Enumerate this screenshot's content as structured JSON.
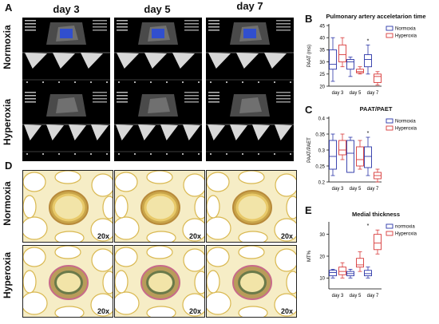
{
  "panels": {
    "A": "A",
    "B": "B",
    "C": "C",
    "D": "D",
    "E": "E"
  },
  "columns": [
    "day 3",
    "day 5",
    "day 7"
  ],
  "rows": [
    "Normoxia",
    "Hyperoxia"
  ],
  "magnification": "20x",
  "legend": {
    "normoxia": "Normoxia",
    "hyperoxia": "Hyperoxia",
    "normoxia_lower": "normoxia"
  },
  "colors": {
    "normoxia": "#2b35a8",
    "hyperoxia": "#d83a3a"
  },
  "chart_data": [
    {
      "type": "box",
      "panel": "B",
      "title": "Pulmonary artery acceletarion time",
      "ylabel": "PAAT (ms)",
      "categories": [
        "day 3",
        "day 5",
        "day 7"
      ],
      "yticks": [
        20,
        25,
        30,
        35,
        40,
        45
      ],
      "ylim": [
        20,
        45
      ],
      "legend_labels": [
        "Normoxia",
        "Hyperoxia"
      ],
      "significance": [
        {
          "category": "day 7",
          "mark": "*"
        }
      ],
      "series": [
        {
          "name": "Normoxia",
          "boxes": [
            {
              "min": 22,
              "q1": 27,
              "median": 29,
              "q3": 35,
              "max": 40
            },
            {
              "min": 24,
              "q1": 27,
              "median": 30,
              "q3": 31,
              "max": 32
            },
            {
              "min": 25,
              "q1": 28,
              "median": 31,
              "q3": 33,
              "max": 37
            }
          ]
        },
        {
          "name": "Hyperoxia",
          "boxes": [
            {
              "min": 28,
              "q1": 30,
              "median": 33,
              "q3": 37,
              "max": 40
            },
            {
              "min": 25,
              "q1": 25.5,
              "median": 26,
              "q3": 27,
              "max": 28
            },
            {
              "min": 20.5,
              "q1": 21.5,
              "median": 24,
              "q3": 25,
              "max": 26
            }
          ]
        }
      ]
    },
    {
      "type": "box",
      "panel": "C",
      "title": "PAAT/PAET",
      "ylabel": "PAAT/PAET",
      "categories": [
        "day 3",
        "day 5",
        "day 7"
      ],
      "yticks": [
        0.2,
        0.25,
        0.3,
        0.35,
        0.4
      ],
      "ylim": [
        0.2,
        0.4
      ],
      "legend_labels": [
        "Normoxia",
        "Hyperoxia"
      ],
      "significance": [
        {
          "category": "day 7",
          "mark": "*"
        }
      ],
      "series": [
        {
          "name": "Normoxia",
          "boxes": [
            {
              "min": 0.22,
              "q1": 0.24,
              "median": 0.28,
              "q3": 0.33,
              "max": 0.35
            },
            {
              "min": 0.23,
              "q1": 0.23,
              "median": 0.29,
              "q3": 0.33,
              "max": 0.34
            },
            {
              "min": 0.22,
              "q1": 0.245,
              "median": 0.28,
              "q3": 0.31,
              "max": 0.34
            }
          ]
        },
        {
          "name": "Hyperoxia",
          "boxes": [
            {
              "min": 0.27,
              "q1": 0.285,
              "median": 0.3,
              "q3": 0.33,
              "max": 0.35
            },
            {
              "min": 0.24,
              "q1": 0.25,
              "median": 0.27,
              "q3": 0.31,
              "max": 0.33
            },
            {
              "min": 0.2,
              "q1": 0.21,
              "median": 0.22,
              "q3": 0.23,
              "max": 0.24
            }
          ]
        }
      ]
    },
    {
      "type": "box",
      "panel": "E",
      "title": "Medial thickness",
      "ylabel": "MT%",
      "categories": [
        "day 3",
        "day 5",
        "day 7"
      ],
      "yticks": [
        10,
        20,
        30
      ],
      "ylim": [
        5,
        35
      ],
      "legend_labels": [
        "normoxia",
        "Hyperoxia"
      ],
      "significance": [
        {
          "category": "day 7",
          "mark": "*"
        }
      ],
      "series": [
        {
          "name": "normoxia",
          "boxes": [
            {
              "min": 10,
              "q1": 11,
              "median": 12.5,
              "q3": 13.5,
              "max": 14
            },
            {
              "min": 10,
              "q1": 11,
              "median": 12,
              "q3": 13,
              "max": 14
            },
            {
              "min": 10,
              "q1": 11,
              "median": 12,
              "q3": 13.5,
              "max": 15
            }
          ]
        },
        {
          "name": "Hyperoxia",
          "boxes": [
            {
              "min": 10,
              "q1": 11.5,
              "median": 13,
              "q3": 15,
              "max": 17
            },
            {
              "min": 13,
              "q1": 15,
              "median": 16,
              "q3": 19,
              "max": 22
            },
            {
              "min": 21,
              "q1": 23,
              "median": 26,
              "q3": 30,
              "max": 32
            }
          ]
        }
      ]
    }
  ]
}
